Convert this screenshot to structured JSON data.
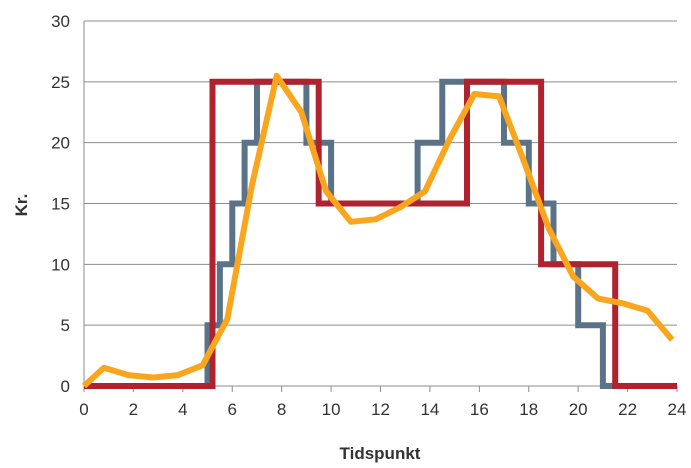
{
  "chart_data": {
    "type": "line",
    "title": "",
    "xlabel": "Tidspunkt",
    "ylabel": "Kr.",
    "xlim": [
      0,
      24
    ],
    "ylim": [
      0,
      30
    ],
    "x_ticks": [
      "0",
      "2",
      "4",
      "6",
      "8",
      "10",
      "12",
      "14",
      "16",
      "18",
      "20",
      "22",
      "24"
    ],
    "y_ticks": [
      "0",
      "5",
      "10",
      "15",
      "20",
      "25",
      "30"
    ],
    "grid": "horizontal",
    "series": [
      {
        "color": "#5b7389",
        "step": true,
        "x": [
          0,
          5.0,
          5.0,
          5.5,
          5.5,
          6.0,
          6.0,
          6.5,
          6.5,
          7.0,
          7.0,
          9.0,
          9.0,
          10.0,
          10.0,
          13.5,
          13.5,
          14.5,
          14.5,
          17.0,
          17.0,
          18.0,
          18.0,
          19.0,
          19.0,
          20.0,
          20.0,
          21.0,
          21.0,
          24
        ],
        "y": [
          0,
          0,
          5,
          5,
          10,
          10,
          15,
          15,
          20,
          20,
          25,
          25,
          20,
          20,
          15,
          15,
          20,
          20,
          25,
          25,
          20,
          20,
          15,
          15,
          10,
          10,
          5,
          5,
          0,
          0
        ]
      },
      {
        "color": "#b0222e",
        "step": true,
        "x": [
          0,
          5.2,
          5.2,
          9.5,
          9.5,
          15.5,
          15.5,
          18.5,
          18.5,
          21.5,
          21.5,
          24
        ],
        "y": [
          0,
          0,
          25,
          25,
          15,
          15,
          25,
          25,
          10,
          10,
          0,
          0
        ]
      },
      {
        "color": "#f9a61e",
        "step": false,
        "x": [
          0,
          0.8,
          1.8,
          2.8,
          3.8,
          4.8,
          5.8,
          6.8,
          7.8,
          8.8,
          9.8,
          10.8,
          11.8,
          12.8,
          13.8,
          14.8,
          15.8,
          16.8,
          17.8,
          18.8,
          19.8,
          20.8,
          21.8,
          22.8,
          23.8
        ],
        "y": [
          0,
          1.5,
          0.9,
          0.7,
          0.9,
          1.7,
          5.5,
          16.5,
          25.5,
          22.5,
          16,
          13.5,
          13.7,
          14.7,
          16,
          20.3,
          24,
          23.8,
          18.5,
          13,
          9,
          7.2,
          6.8,
          6.2,
          3.8
        ]
      }
    ]
  }
}
